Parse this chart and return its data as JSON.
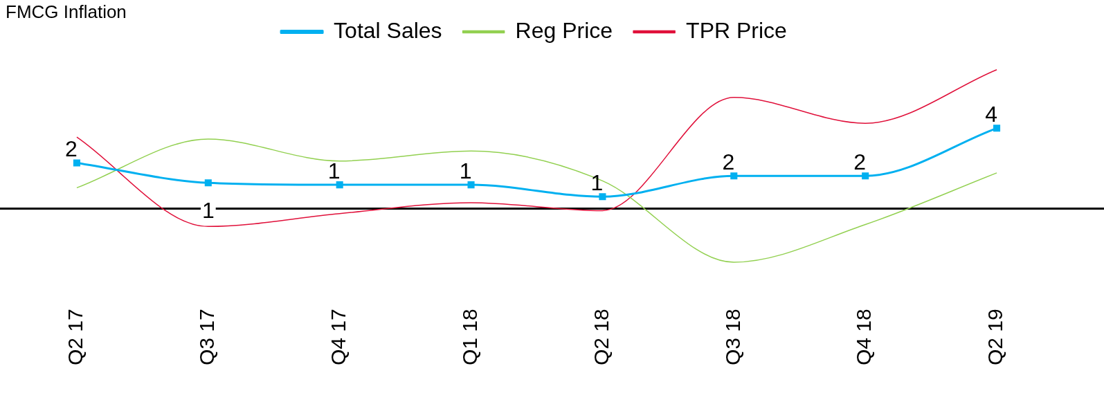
{
  "chart_data": {
    "type": "line",
    "title": "FMCG Inflation",
    "categories": [
      "Q2 17",
      "Q3 17",
      "Q4 17",
      "Q1 18",
      "Q2 18",
      "Q3 18",
      "Q4 18",
      "Q2 19"
    ],
    "series": [
      {
        "name": "Total Sales",
        "color": "#00b0f0",
        "values": [
          2.3,
          1.3,
          1.2,
          1.2,
          0.6,
          1.65,
          1.65,
          4.05
        ],
        "value_labels": [
          "2",
          "1",
          "1",
          "1",
          "1",
          "2",
          "2",
          "4"
        ],
        "marker": "square"
      },
      {
        "name": "Reg Price",
        "color": "#92d050",
        "values": [
          1.05,
          3.5,
          2.4,
          2.9,
          1.4,
          -2.7,
          -0.8,
          1.8
        ],
        "marker": "none"
      },
      {
        "name": "TPR Price",
        "color": "#e0103a",
        "values": [
          3.6,
          -0.9,
          -0.25,
          0.3,
          -0.1,
          5.6,
          4.3,
          7.0
        ],
        "marker": "none"
      }
    ],
    "tick_labels": "x",
    "grid": false,
    "legend": "top"
  }
}
